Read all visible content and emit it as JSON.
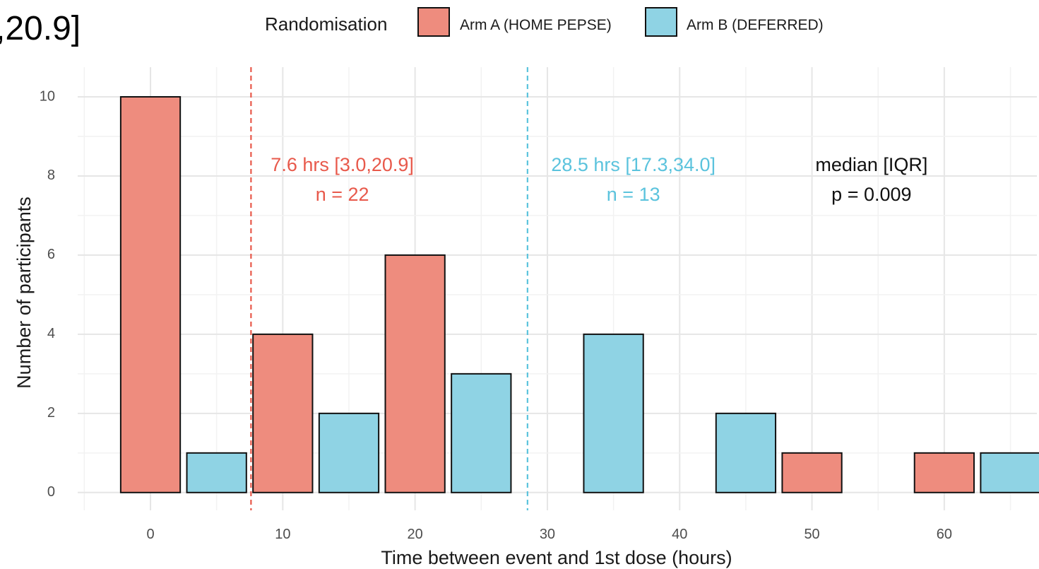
{
  "corner_fragment": ",20.9]",
  "chart_data": {
    "type": "bar",
    "xlabel": "Time between event and 1st dose (hours)",
    "ylabel": "Number of participants",
    "xlim": [
      -5.5,
      67
    ],
    "ylim": [
      -0.45,
      10.75
    ],
    "x_ticks": [
      0,
      10,
      20,
      30,
      40,
      50,
      60
    ],
    "y_ticks": [
      0,
      2,
      4,
      6,
      8,
      10
    ],
    "grid": true,
    "legend": {
      "title": "Randomisation",
      "position": "top",
      "entries": [
        {
          "label": "Arm A (HOME PEPSE)",
          "color": "#ee8c7e"
        },
        {
          "label": "Arm B (DEFERRED)",
          "color": "#8fd3e4"
        }
      ]
    },
    "bin_width": 5,
    "bars": [
      {
        "x": 0,
        "arm": "A",
        "value": 10
      },
      {
        "x": 5,
        "arm": "B",
        "value": 1
      },
      {
        "x": 10,
        "arm": "A",
        "value": 4
      },
      {
        "x": 15,
        "arm": "B",
        "value": 2
      },
      {
        "x": 20,
        "arm": "A",
        "value": 6
      },
      {
        "x": 25,
        "arm": "B",
        "value": 3
      },
      {
        "x": 30,
        "arm": "A",
        "value": 0
      },
      {
        "x": 35,
        "arm": "B",
        "value": 4
      },
      {
        "x": 40,
        "arm": "A",
        "value": 0
      },
      {
        "x": 45,
        "arm": "B",
        "value": 2
      },
      {
        "x": 50,
        "arm": "A",
        "value": 1
      },
      {
        "x": 55,
        "arm": "B",
        "value": 0
      },
      {
        "x": 60,
        "arm": "A",
        "value": 1
      },
      {
        "x": 65,
        "arm": "B",
        "value": 1
      }
    ],
    "median_lines": [
      {
        "arm": "A",
        "x": 7.6,
        "color": "#e8594b"
      },
      {
        "arm": "B",
        "x": 28.5,
        "color": "#5bc3dd"
      }
    ],
    "annotations": [
      {
        "x": 14.5,
        "y": 8.25,
        "text": "7.6 hrs [3.0,20.9]",
        "color": "#e8594b"
      },
      {
        "x": 14.5,
        "y": 7.5,
        "text": "n = 22",
        "color": "#e8594b"
      },
      {
        "x": 36.5,
        "y": 8.25,
        "text": "28.5 hrs [17.3,34.0]",
        "color": "#5bc3dd"
      },
      {
        "x": 36.5,
        "y": 7.5,
        "text": "n = 13",
        "color": "#5bc3dd"
      },
      {
        "x": 54.5,
        "y": 8.25,
        "text": "median [IQR]",
        "color": "#111111"
      },
      {
        "x": 54.5,
        "y": 7.5,
        "text": "p = 0.009",
        "color": "#111111"
      }
    ]
  },
  "colors": {
    "arm_a_fill": "#ee8c7e",
    "arm_b_fill": "#8fd3e4",
    "bar_stroke": "#111111",
    "grid_major": "#e6e6e6",
    "grid_minor": "#f2f2f2"
  }
}
